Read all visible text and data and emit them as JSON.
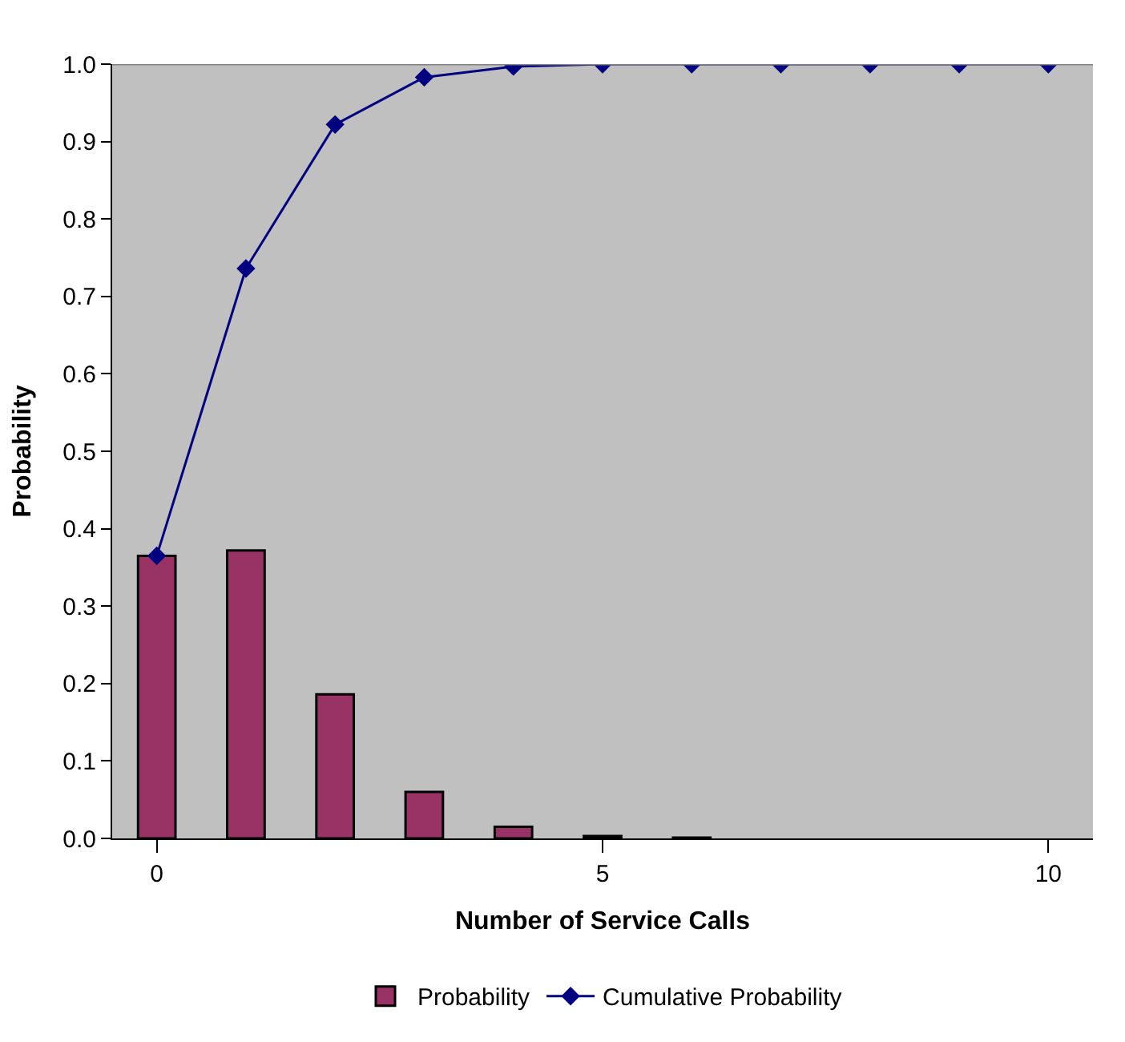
{
  "chart_data": {
    "type": "bar",
    "xlabel": "Number of Service Calls",
    "ylabel": "Probability",
    "x": [
      0,
      1,
      2,
      3,
      4,
      5,
      6,
      7,
      8,
      9,
      10
    ],
    "series": [
      {
        "name": "Probability",
        "color": "#993366",
        "values": [
          0.365,
          0.372,
          0.186,
          0.06,
          0.015,
          0.003,
          0.001,
          0,
          0,
          0,
          0
        ]
      },
      {
        "name": "Cumulative Probability",
        "type": "line",
        "color": "#000080",
        "marker": "diamond",
        "values": [
          0.365,
          0.736,
          0.922,
          0.983,
          0.997,
          1.0,
          1.0,
          1.0,
          1.0,
          1.0,
          1.0
        ]
      }
    ],
    "xlim": [
      -0.5,
      10.5
    ],
    "xticks": [
      0,
      5,
      10
    ],
    "ylim": [
      0,
      1.0
    ],
    "yticks": [
      {
        "value": 0,
        "label": "0.0"
      },
      0.1,
      0.2,
      0.3,
      0.4,
      0.5,
      0.6,
      0.7,
      0.8,
      0.9,
      {
        "value": 1.0,
        "label": "1.0"
      }
    ],
    "grid": false,
    "legend": "bottom"
  }
}
